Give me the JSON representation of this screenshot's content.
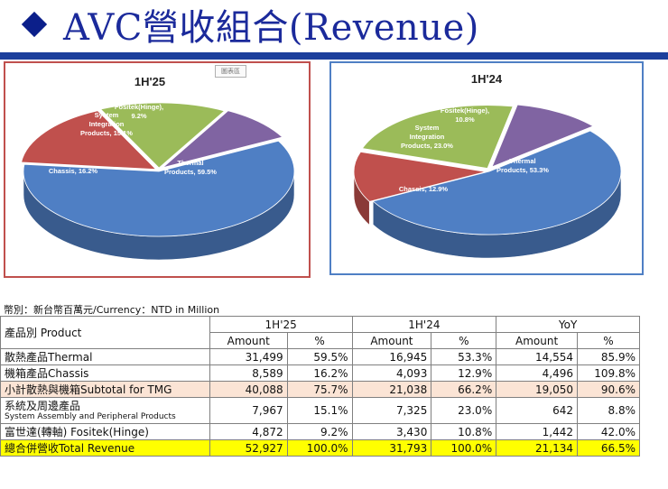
{
  "title": "AVC營收組合(Revenue)",
  "stamp": "圖表區",
  "currency_note": "幣別：新台幣百萬元/Currency：NTD in Million",
  "colors": {
    "thermal": "#4f7fc4",
    "chassis": "#c0504d",
    "system": "#9bbb59",
    "fositek": "#8064a2"
  },
  "chart_data": [
    {
      "type": "pie",
      "title": "1H'25",
      "categories": [
        "Thermal Products",
        "Chassis",
        "System Integration Products",
        "Fositek(Hinge)"
      ],
      "values": [
        59.5,
        16.2,
        15.1,
        9.2
      ],
      "labels": [
        "Thermal\nProducts, 59.5%",
        "Chassis, 16.2%",
        "System\nIntegration\nProducts, 15.1%",
        "Fositek(Hinge),\n9.2%"
      ]
    },
    {
      "type": "pie",
      "title": "1H'24",
      "categories": [
        "Thermal Products",
        "Chassis",
        "System Integration Products",
        "Fositek(Hinge)"
      ],
      "values": [
        53.3,
        12.9,
        23.0,
        10.8
      ],
      "labels": [
        "Thermal\nProducts, 53.3%",
        "Chassis, 12.9%",
        "System\nIntegration\nProducts, 23.0%",
        "Fositek(Hinge),\n10.8%"
      ]
    }
  ],
  "table": {
    "product_header": "產品別 Product",
    "groups": [
      "1H'25",
      "1H'24",
      "YoY"
    ],
    "sub_headers": [
      "Amount",
      "%",
      "Amount",
      "%",
      "Amount",
      "%"
    ],
    "rows": [
      {
        "label": "散熱產品Thermal",
        "sub": "",
        "cells": [
          "31,499",
          "59.5%",
          "16,945",
          "53.3%",
          "14,554",
          "85.9%"
        ]
      },
      {
        "label": "機箱產品Chassis",
        "sub": "",
        "cells": [
          "8,589",
          "16.2%",
          "4,093",
          "12.9%",
          "4,496",
          "109.8%"
        ]
      },
      {
        "label": "小計散熱與機箱Subtotal for TMG",
        "sub": "",
        "cells": [
          "40,088",
          "75.7%",
          "21,038",
          "66.2%",
          "19,050",
          "90.6%"
        ]
      },
      {
        "label": "系統及周邊產品",
        "sub": "System Assembly and Peripheral Products",
        "cells": [
          "7,967",
          "15.1%",
          "7,325",
          "23.0%",
          "642",
          "8.8%"
        ]
      },
      {
        "label": "富世達(轉軸) Fositek(Hinge)",
        "sub": "",
        "cells": [
          "4,872",
          "9.2%",
          "3,430",
          "10.8%",
          "1,442",
          "42.0%"
        ]
      },
      {
        "label": "總合併營收Total Revenue",
        "sub": "",
        "cells": [
          "52,927",
          "100.0%",
          "31,793",
          "100.0%",
          "21,134",
          "66.5%"
        ]
      }
    ]
  }
}
